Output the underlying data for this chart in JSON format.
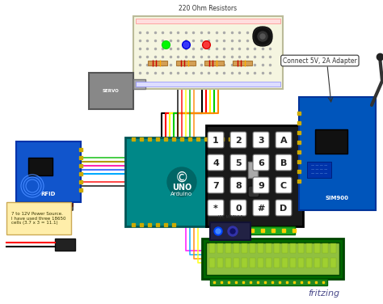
{
  "background_color": "#ffffff",
  "title": "",
  "fritzing_label": "fritzing",
  "fritzing_label_color": "#4a4a8a",
  "annotation_connect_5v": "Connect 5V, 2A Adapter",
  "annotation_power": "7 to 12V Power Source.\nI have used three 18650\ncells (3.7 x 3 = 11.1)",
  "annotation_resistors": "220 Ohm Resistors",
  "breadboard_color": "#f5f5e0",
  "breadboard_border": "#ccccaa",
  "arduino_color": "#008080",
  "arduino_label": "Arduino",
  "arduino_uno_label": "UNO",
  "keypad_bg": "#1a1a1a",
  "keypad_keys": [
    "1",
    "2",
    "3",
    "A",
    "4",
    "5",
    "6",
    "B",
    "7",
    "8",
    "9",
    "C",
    "*",
    "0",
    "#",
    "D"
  ],
  "lcd_color": "#90c040",
  "rfid_color": "#1155cc",
  "gsm_color": "#1155cc",
  "servo_color": "#aaaaaa",
  "wire_colors": [
    "#ff0000",
    "#000000",
    "#ffff00",
    "#00aa00",
    "#ff8800",
    "#ff00ff",
    "#00aaff",
    "#ffffff"
  ],
  "power_color": "#ffdd88",
  "note_bg": "#ffeeaa",
  "figsize": [
    4.74,
    3.76
  ],
  "dpi": 100
}
